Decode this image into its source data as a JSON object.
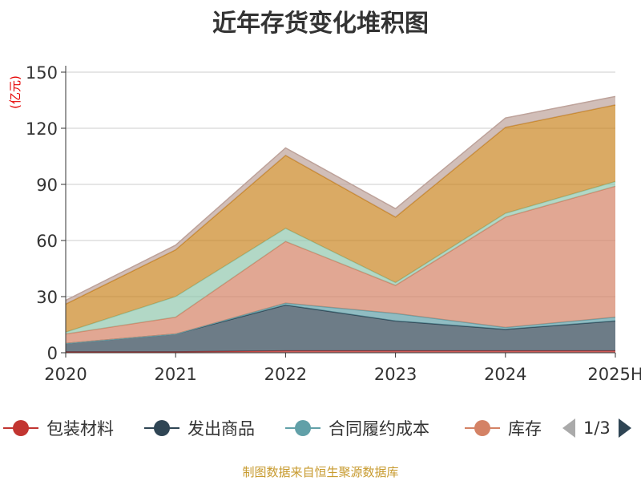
{
  "chart_data": {
    "type": "area",
    "stacked": true,
    "title": "近年存货变化堆积图",
    "ylabel": "(亿元)",
    "ylim": [
      0,
      150
    ],
    "yticks": [
      0,
      30,
      60,
      90,
      120,
      150
    ],
    "categories": [
      "2020",
      "2021",
      "2022",
      "2023",
      "2024",
      "2025H"
    ],
    "series": [
      {
        "name": "包装材料",
        "color": "#c23531",
        "values": [
          0.5,
          0.5,
          1,
          1,
          1,
          1
        ]
      },
      {
        "name": "发出商品",
        "color": "#2f4554",
        "values": [
          4.5,
          9.5,
          24.5,
          16,
          11.5,
          16
        ]
      },
      {
        "name": "合同履约成本",
        "color": "#61a0a8",
        "values": [
          0,
          0,
          1,
          4,
          1,
          2
        ]
      },
      {
        "name": "库存",
        "color": "#d48265",
        "values": [
          5,
          9,
          33,
          15,
          59,
          70
        ]
      },
      {
        "name": "",
        "color": "#91c7ae",
        "values": [
          1,
          11,
          7,
          1.5,
          2,
          2.5
        ]
      },
      {
        "name": "",
        "color": "#ca8622",
        "values": [
          15,
          25,
          39,
          35,
          46,
          41
        ]
      },
      {
        "name": "",
        "color": "#bda29a",
        "values": [
          2,
          2.5,
          4,
          4.5,
          5,
          4.5
        ]
      }
    ],
    "grid": true,
    "legend_position": "bottom"
  },
  "legend": {
    "page_text": "1/3",
    "prev_icon": "triangle-left-icon",
    "next_icon": "triangle-right-icon"
  },
  "source_note": "制图数据来自恒生聚源数据库"
}
